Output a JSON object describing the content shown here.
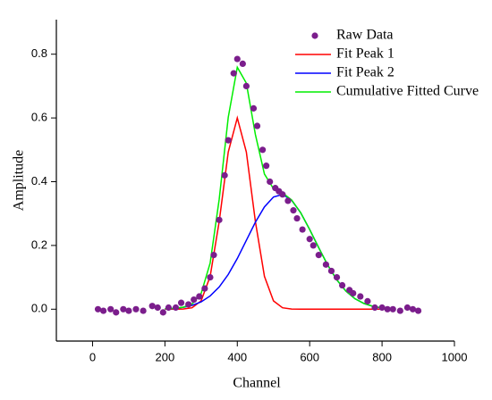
{
  "chart_data": {
    "type": "scatter",
    "x_label": "Channel",
    "y_label": "Amplitude",
    "xlim": [
      -100,
      1000
    ],
    "xticks": [
      0,
      200,
      400,
      600,
      800,
      1000
    ],
    "ylim": [
      -0.1,
      0.9
    ],
    "yticks": [
      {
        "value": 0,
        "label": "0.0"
      },
      0.2,
      0.4,
      0.6,
      0.8
    ],
    "legend": "top-right",
    "series": [
      {
        "name": "Raw Data",
        "color": "#7b1e8c",
        "mode": "markers",
        "x": [
          15,
          30,
          50,
          65,
          85,
          100,
          120,
          140,
          165,
          180,
          195,
          210,
          230,
          245,
          265,
          280,
          295,
          310,
          325,
          335,
          350,
          365,
          375,
          390,
          400,
          415,
          425,
          445,
          455,
          470,
          480,
          490,
          505,
          515,
          525,
          540,
          555,
          565,
          580,
          600,
          610,
          625,
          645,
          660,
          675,
          690,
          710,
          720,
          740,
          760,
          780,
          800,
          815,
          830,
          850,
          870,
          885,
          900
        ],
        "values": [
          0,
          -0.005,
          0,
          -0.01,
          0,
          -0.005,
          0,
          -0.005,
          0.01,
          0.005,
          -0.01,
          0.005,
          0.005,
          0.02,
          0.015,
          0.03,
          0.04,
          0.065,
          0.1,
          0.17,
          0.28,
          0.42,
          0.53,
          0.74,
          0.785,
          0.77,
          0.7,
          0.63,
          0.575,
          0.5,
          0.45,
          0.4,
          0.38,
          0.37,
          0.36,
          0.34,
          0.31,
          0.285,
          0.25,
          0.22,
          0.2,
          0.17,
          0.14,
          0.12,
          0.1,
          0.075,
          0.06,
          0.05,
          0.04,
          0.025,
          0.005,
          0.005,
          0,
          0,
          -0.005,
          0.005,
          0,
          -0.005
        ]
      },
      {
        "name": "Fit Peak 1",
        "color": "#ff0000",
        "mode": "line",
        "x": [
          200,
          225,
          250,
          275,
          300,
          325,
          350,
          375,
          400,
          425,
          450,
          475,
          500,
          525,
          550,
          575,
          600,
          625,
          650,
          675,
          700,
          725,
          750,
          775,
          800
        ],
        "values": [
          0,
          0,
          0.0005,
          0.0045,
          0.026,
          0.103,
          0.275,
          0.493,
          0.6,
          0.493,
          0.275,
          0.103,
          0.026,
          0.0045,
          0.0005,
          0,
          0,
          0,
          0,
          0,
          0,
          0,
          0,
          0,
          0
        ]
      },
      {
        "name": "Fit Peak 2",
        "color": "#0000ff",
        "mode": "line",
        "x": [
          200,
          225,
          250,
          275,
          300,
          325,
          350,
          375,
          400,
          425,
          450,
          475,
          500,
          525,
          550,
          575,
          600,
          625,
          650,
          675,
          700,
          725,
          750,
          775,
          800
        ],
        "values": [
          0.0011,
          0.0026,
          0.0057,
          0.0119,
          0.023,
          0.0416,
          0.0697,
          0.109,
          0.159,
          0.216,
          0.273,
          0.321,
          0.352,
          0.36,
          0.342,
          0.303,
          0.25,
          0.193,
          0.138,
          0.092,
          0.057,
          0.033,
          0.018,
          0.009,
          0.004
        ]
      },
      {
        "name": "Cumulative Fitted Curve",
        "color": "#00ee00",
        "mode": "line",
        "x": [
          200,
          225,
          250,
          275,
          300,
          325,
          350,
          375,
          400,
          425,
          450,
          475,
          500,
          525,
          550,
          575,
          600,
          625,
          650,
          675,
          700,
          725,
          750,
          775,
          800
        ],
        "values": [
          0.0011,
          0.0026,
          0.0062,
          0.0164,
          0.049,
          0.145,
          0.345,
          0.602,
          0.759,
          0.709,
          0.548,
          0.424,
          0.378,
          0.365,
          0.343,
          0.303,
          0.25,
          0.193,
          0.138,
          0.092,
          0.057,
          0.033,
          0.018,
          0.009,
          0.004
        ]
      }
    ]
  }
}
